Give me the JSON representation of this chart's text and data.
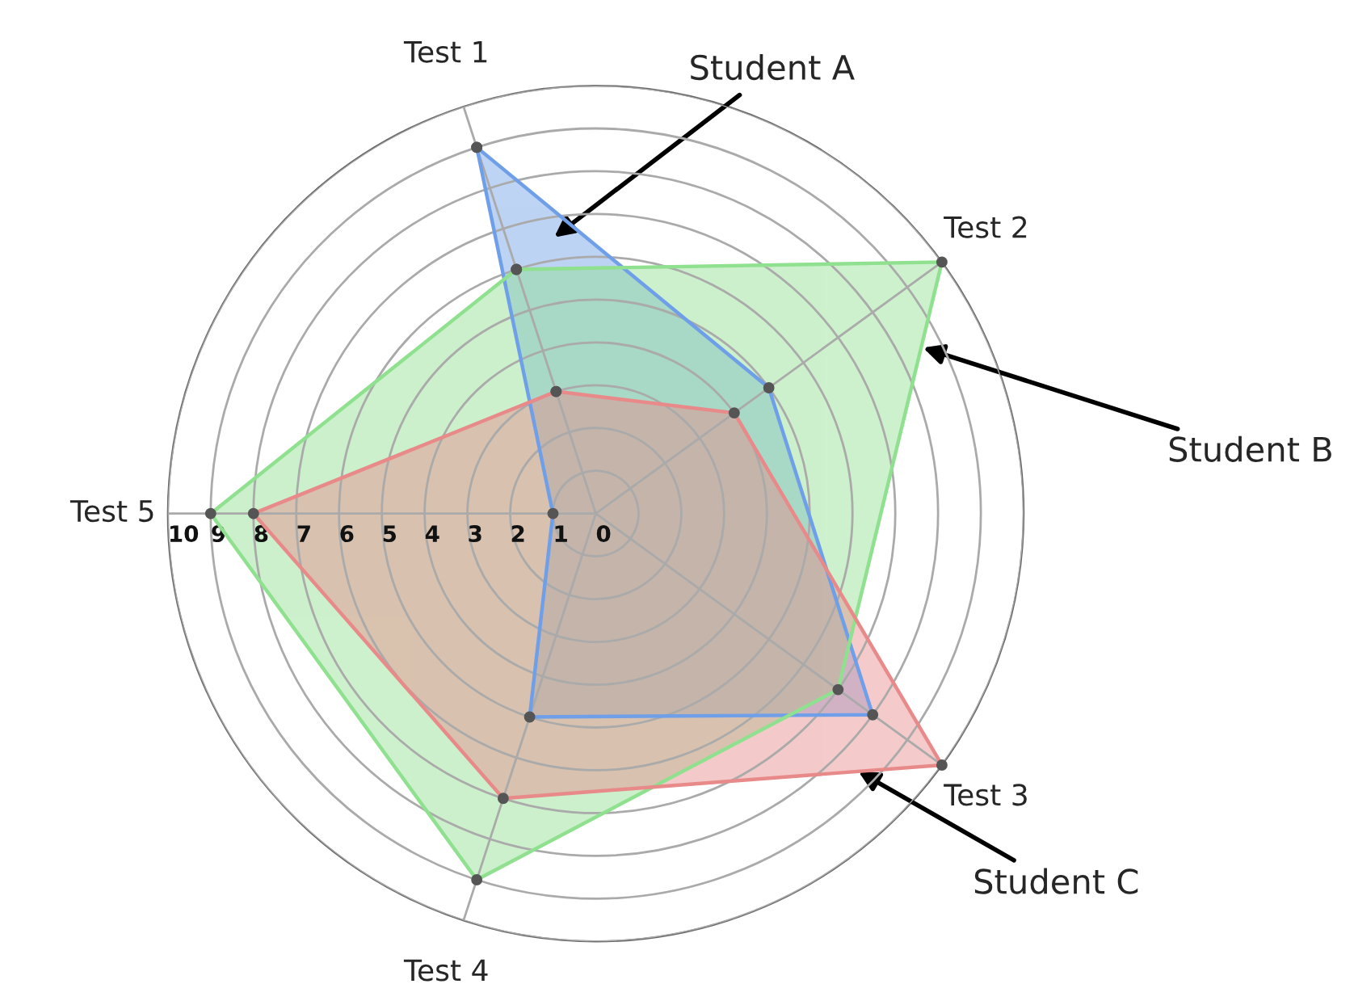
{
  "chart_data": {
    "type": "radar",
    "categories": [
      "Test 1",
      "Test 2",
      "Test 3",
      "Test 4",
      "Test 5"
    ],
    "series": [
      {
        "name": "Student A",
        "color": "#6f9fe8",
        "values": [
          9,
          5,
          8,
          5,
          1
        ]
      },
      {
        "name": "Student B",
        "color": "#8fe08f",
        "values": [
          6,
          10,
          7,
          9,
          9
        ]
      },
      {
        "name": "Student C",
        "color": "#e88a8a",
        "values": [
          3,
          4,
          10,
          7,
          8
        ]
      }
    ],
    "ylim": [
      0,
      10
    ],
    "yticks": [
      0,
      1,
      2,
      3,
      4,
      5,
      6,
      7,
      8,
      9,
      10
    ],
    "grid": true,
    "marker": "circle",
    "legend": false
  }
}
